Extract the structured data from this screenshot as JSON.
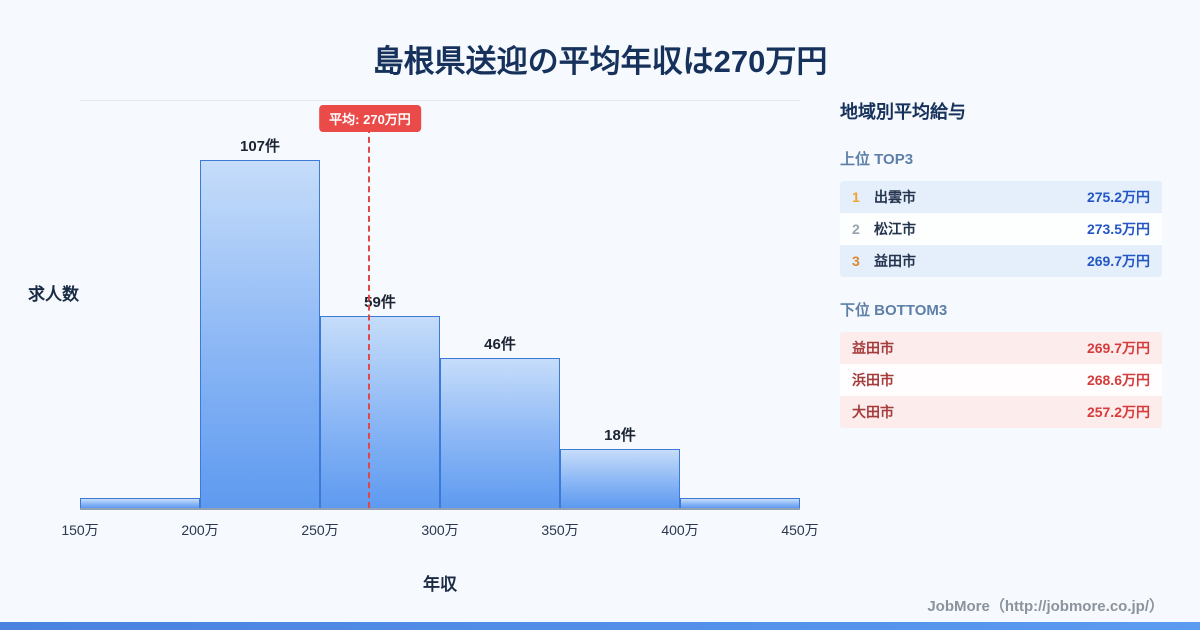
{
  "title": "島根県送迎の平均年収は270万円",
  "chart_data": {
    "type": "bar",
    "subtype": "histogram",
    "title": "島根県送迎の平均年収は270万円",
    "xlabel": "年収",
    "ylabel": "求人数",
    "bin_edges_labels": [
      "150万",
      "200万",
      "250万",
      "300万",
      "350万",
      "400万",
      "450万"
    ],
    "values": [
      3,
      107,
      59,
      46,
      18,
      3
    ],
    "bar_labels": [
      "",
      "107件",
      "59件",
      "46件",
      "18件",
      ""
    ],
    "ylim": [
      0,
      125
    ],
    "grid": false,
    "average": {
      "value": 270,
      "x_min": 150,
      "x_max": 450,
      "label": "平均: 270万円"
    }
  },
  "sidebar": {
    "title": "地域別平均給与",
    "top": {
      "label": "上位 TOP3",
      "rows": [
        {
          "rank": "1",
          "city": "出雲市",
          "value": "275.2万円"
        },
        {
          "rank": "2",
          "city": "松江市",
          "value": "273.5万円"
        },
        {
          "rank": "3",
          "city": "益田市",
          "value": "269.7万円"
        }
      ]
    },
    "bottom": {
      "label": "下位 BOTTOM3",
      "rows": [
        {
          "city": "益田市",
          "value": "269.7万円"
        },
        {
          "city": "浜田市",
          "value": "268.6万円"
        },
        {
          "city": "大田市",
          "value": "257.2万円"
        }
      ]
    }
  },
  "footer": {
    "credit": "JobMore（http://jobmore.co.jp/）"
  },
  "colors": {
    "accent_red": "#ea4a48",
    "bar_blue": "#5e9af0",
    "bar_border_blue": "#3b7ad6",
    "top_value_blue": "#2457c5",
    "bottom_value_red": "#d63c3c",
    "title_navy": "#16325c",
    "background": "#f6f9fd"
  }
}
